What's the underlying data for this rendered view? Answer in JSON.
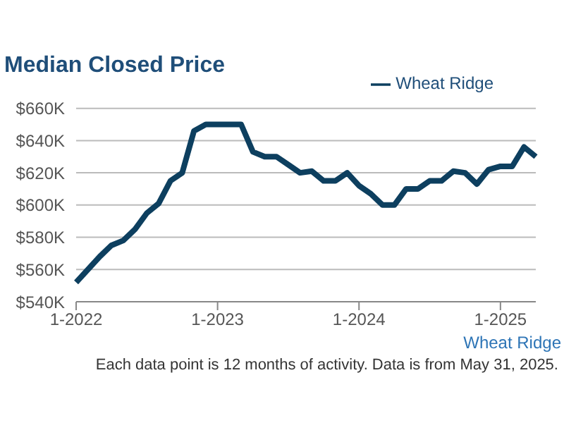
{
  "chart_data": {
    "type": "line",
    "title": "Median Closed Price",
    "categories": [
      "1-2022",
      null,
      null,
      null,
      null,
      null,
      null,
      null,
      null,
      null,
      null,
      null,
      "1-2023",
      null,
      null,
      null,
      null,
      null,
      null,
      null,
      null,
      null,
      null,
      null,
      "1-2024",
      null,
      null,
      null,
      null,
      null,
      null,
      null,
      null,
      null,
      null,
      null,
      "1-2025",
      null,
      null,
      null
    ],
    "series": [
      {
        "name": "Wheat Ridge",
        "color": "#0d3f5f",
        "values": [
          552,
          560,
          568,
          575,
          578,
          585,
          595,
          601,
          615,
          620,
          646,
          650,
          650,
          650,
          650,
          633,
          630,
          630,
          625,
          620,
          621,
          615,
          615,
          620,
          612,
          607,
          600,
          600,
          610,
          610,
          615,
          615,
          621,
          620,
          613,
          622,
          624,
          624,
          636,
          630
        ]
      }
    ],
    "ylim": [
      540,
      660
    ],
    "yticks": [
      {
        "value": 540,
        "label": "$540K"
      },
      {
        "value": 560,
        "label": "$560K"
      },
      {
        "value": 580,
        "label": "$580K"
      },
      {
        "value": 600,
        "label": "$600K"
      },
      {
        "value": 620,
        "label": "$620K"
      },
      {
        "value": 640,
        "label": "$640K"
      },
      {
        "value": 660,
        "label": "$660K"
      }
    ],
    "grid": "y",
    "legend": "top right",
    "marker": "none",
    "line_style": "solid",
    "annotations": [
      "Wheat Ridge",
      "Each data point is 12 months of activity. Data is from May 31, 2025."
    ]
  }
}
